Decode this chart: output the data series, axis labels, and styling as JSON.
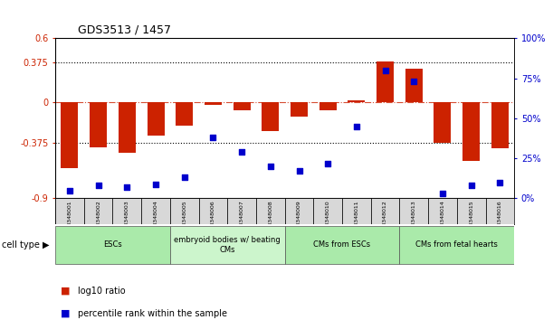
{
  "title": "GDS3513 / 1457",
  "samples": [
    "GSM348001",
    "GSM348002",
    "GSM348003",
    "GSM348004",
    "GSM348005",
    "GSM348006",
    "GSM348007",
    "GSM348008",
    "GSM348009",
    "GSM348010",
    "GSM348011",
    "GSM348012",
    "GSM348013",
    "GSM348014",
    "GSM348015",
    "GSM348016"
  ],
  "log10_ratio": [
    -0.62,
    -0.42,
    -0.47,
    -0.31,
    -0.22,
    -0.02,
    -0.07,
    -0.27,
    -0.13,
    -0.07,
    0.02,
    0.38,
    0.32,
    -0.38,
    -0.55,
    -0.43
  ],
  "percentile_rank": [
    5,
    8,
    7,
    9,
    13,
    38,
    29,
    20,
    17,
    22,
    45,
    80,
    73,
    3,
    8,
    10
  ],
  "cell_type_groups": [
    {
      "label": "ESCs",
      "start": 0,
      "end": 3,
      "color": "#aaeaaa"
    },
    {
      "label": "embryoid bodies w/ beating\nCMs",
      "start": 4,
      "end": 7,
      "color": "#ccf5cc"
    },
    {
      "label": "CMs from ESCs",
      "start": 8,
      "end": 11,
      "color": "#aaeaaa"
    },
    {
      "label": "CMs from fetal hearts",
      "start": 12,
      "end": 15,
      "color": "#aaeaaa"
    }
  ],
  "bar_color": "#CC2200",
  "dot_color": "#0000CC",
  "left_ylim": [
    -0.9,
    0.6
  ],
  "right_ylim": [
    0,
    100
  ],
  "left_yticks": [
    -0.9,
    -0.375,
    0,
    0.375,
    0.6
  ],
  "right_yticks": [
    0,
    25,
    50,
    75,
    100
  ],
  "left_yticklabels": [
    "-0.9",
    "-0.375",
    "0",
    "0.375",
    "0.6"
  ],
  "right_yticklabels": [
    "0%",
    "25%",
    "50%",
    "75%",
    "100%"
  ],
  "hline_y": [
    0.375,
    -0.375
  ],
  "dashed_hline_y": 0,
  "bar_color_red": "#CC2200",
  "dot_color_blue": "#0000CC"
}
